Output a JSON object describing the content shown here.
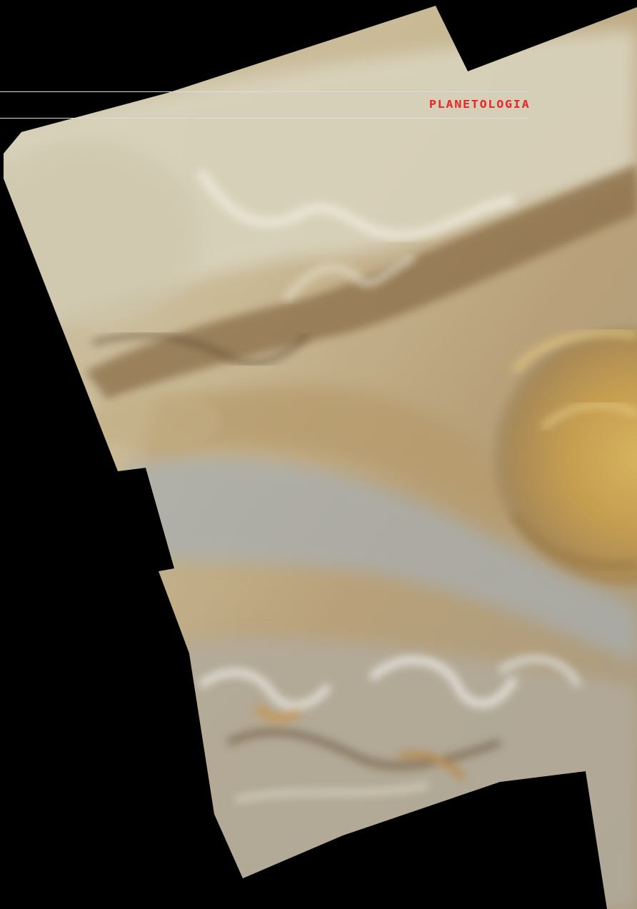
{
  "header": {
    "section_label": "PLANETOLOGIA"
  },
  "image": {
    "subject": "jupiter-great-red-spot-mosaic-icon",
    "colors": {
      "background": "#000000",
      "rule": "#dcdcdc",
      "label": "#e8262a",
      "cream": "#d8cfb4",
      "tan": "#b59c72",
      "ochre": "#c9a45a",
      "bluegray": "#9fa6ad",
      "brown": "#7a5f3c"
    }
  }
}
